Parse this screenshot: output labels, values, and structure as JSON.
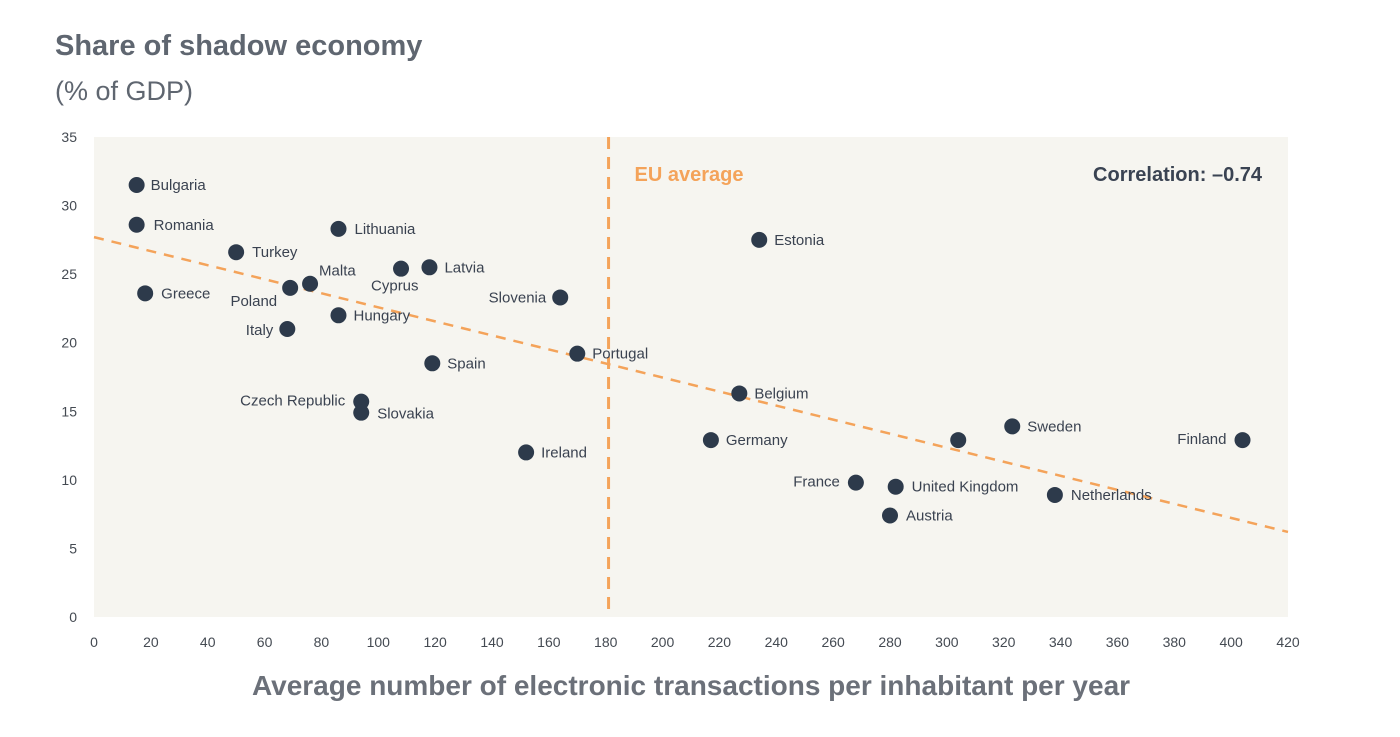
{
  "chart_data": {
    "type": "scatter",
    "title": "Share of shadow economy",
    "subtitle": "(% of GDP)",
    "xlabel": "Average number of electronic transactions per inhabitant per year",
    "ylabel": "",
    "xlim": [
      0,
      420
    ],
    "ylim": [
      0,
      35
    ],
    "x_ticks": [
      0,
      20,
      40,
      60,
      80,
      100,
      120,
      140,
      160,
      180,
      200,
      220,
      240,
      260,
      280,
      300,
      320,
      340,
      360,
      380,
      400,
      420
    ],
    "y_ticks": [
      0,
      5,
      10,
      15,
      20,
      25,
      30,
      35
    ],
    "grid": false,
    "reference_line": {
      "label": "EU average",
      "x": 181,
      "color": "#f4a35a"
    },
    "trend_line": {
      "x": [
        0,
        420
      ],
      "y": [
        27.7,
        6.2
      ],
      "color": "#f4a35a"
    },
    "annotation": "Correlation: –0.74",
    "point_color": "#2d3a4b",
    "points": [
      {
        "label": "Bulgaria",
        "x": 15,
        "y": 31.5
      },
      {
        "label": "Romania",
        "x": 15,
        "y": 28.6
      },
      {
        "label": "Lithuania",
        "x": 86,
        "y": 28.3
      },
      {
        "label": "Turkey",
        "x": 50,
        "y": 26.6
      },
      {
        "label": "Malta",
        "x": 76,
        "y": 24.3
      },
      {
        "label": "Cyprus",
        "x": 108,
        "y": 25.4
      },
      {
        "label": "Latvia",
        "x": 118,
        "y": 25.5
      },
      {
        "label": "Greece",
        "x": 18,
        "y": 23.6
      },
      {
        "label": "Poland",
        "x": 69,
        "y": 24.0
      },
      {
        "label": "Slovenia",
        "x": 164,
        "y": 23.3
      },
      {
        "label": "Hungary",
        "x": 86,
        "y": 22.0
      },
      {
        "label": "Italy",
        "x": 68,
        "y": 21.0
      },
      {
        "label": "Portugal",
        "x": 170,
        "y": 19.2
      },
      {
        "label": "Spain",
        "x": 119,
        "y": 18.5
      },
      {
        "label": "Estonia",
        "x": 234,
        "y": 27.5
      },
      {
        "label": "Belgium",
        "x": 227,
        "y": 16.3
      },
      {
        "label": "Czech Republic",
        "x": 94,
        "y": 15.7
      },
      {
        "label": "Slovakia",
        "x": 94,
        "y": 14.9
      },
      {
        "label": "Ireland",
        "x": 152,
        "y": 12.0
      },
      {
        "label": "Germany",
        "x": 217,
        "y": 12.9
      },
      {
        "label": "",
        "x": 304,
        "y": 12.9
      },
      {
        "label": "Sweden",
        "x": 323,
        "y": 13.9
      },
      {
        "label": "Finland",
        "x": 404,
        "y": 12.9
      },
      {
        "label": "France",
        "x": 268,
        "y": 9.8
      },
      {
        "label": "United Kingdom",
        "x": 282,
        "y": 9.5
      },
      {
        "label": "Netherlands",
        "x": 338,
        "y": 8.9
      },
      {
        "label": "Austria",
        "x": 280,
        "y": 7.4
      }
    ]
  }
}
